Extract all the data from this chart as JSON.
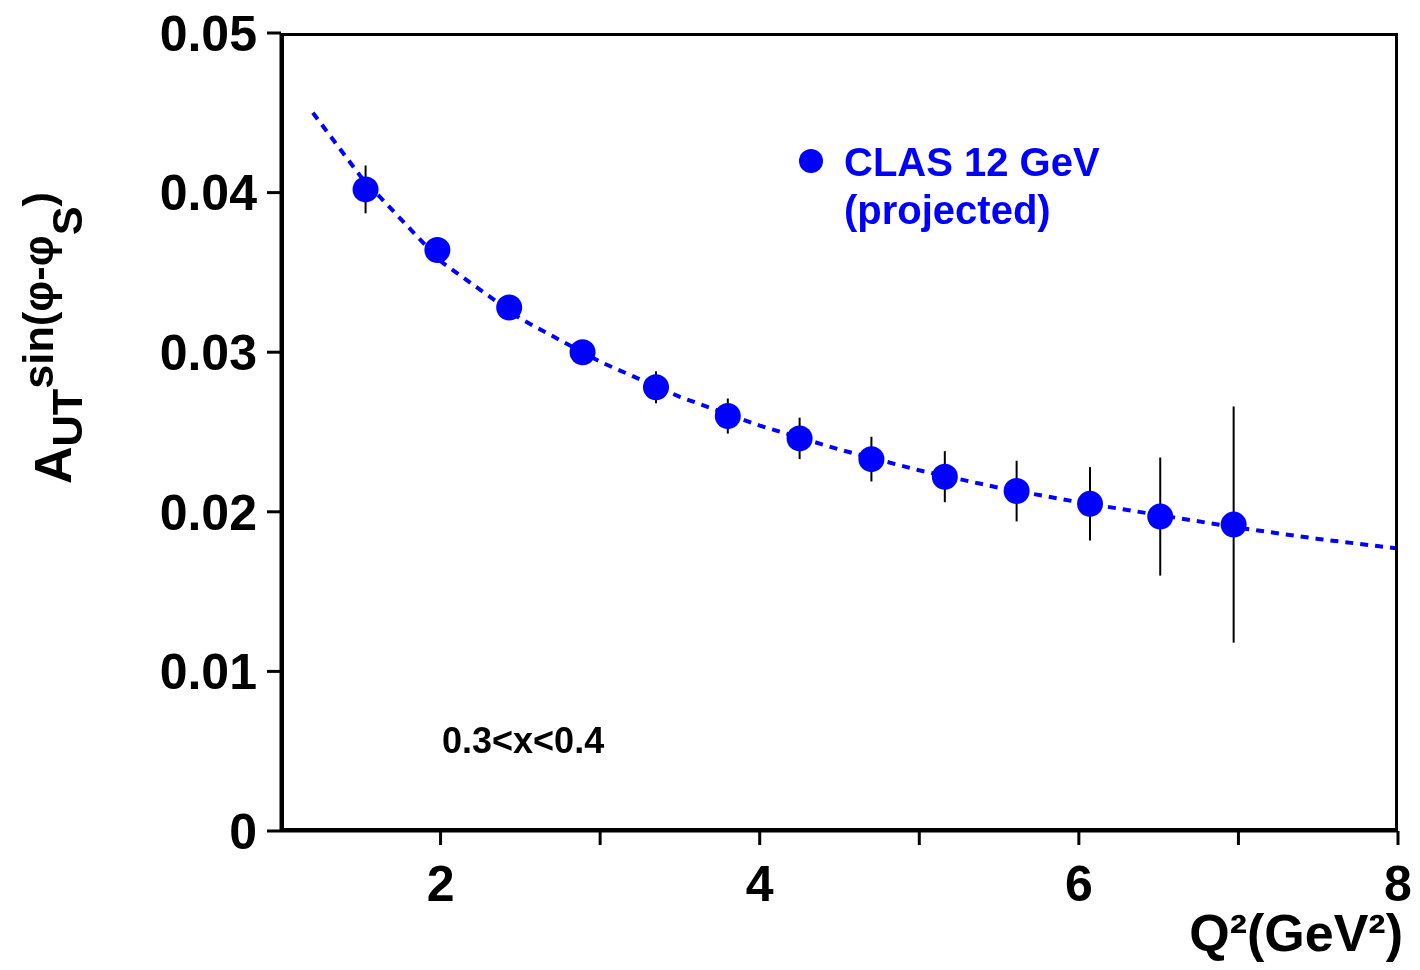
{
  "chart_data": {
    "type": "scatter",
    "xlabel": "Q²(GeV²)",
    "ylabel": "A$_{UT}$$^{sin(φ-φ}$$_{S}$$^{)}$",
    "xlim": [
      1,
      8
    ],
    "xticks": [
      2,
      {
        "value": 3,
        "label": null
      },
      4,
      {
        "value": 5,
        "label": null
      },
      6,
      {
        "value": 7,
        "label": null
      },
      8
    ],
    "ylim": [
      0,
      0.05
    ],
    "yticks": [
      0,
      0.01,
      0.02,
      0.03,
      0.04,
      0.05
    ],
    "x": [
      1.53,
      1.98,
      2.43,
      2.89,
      3.35,
      3.8,
      4.25,
      4.7,
      5.16,
      5.61,
      6.07,
      6.51,
      6.97
    ],
    "series": [
      {
        "name": "CLAS 12 GeV (projected)",
        "marker": "circle",
        "color": "#0000ff",
        "values": [
          0.0402,
          0.0364,
          0.0328,
          0.03,
          0.0278,
          0.026,
          0.0246,
          0.0233,
          0.0222,
          0.0213,
          0.0205,
          0.0197,
          0.0192
        ],
        "errors": [
          0.0015,
          null,
          null,
          null,
          0.001,
          0.0011,
          0.0013,
          0.0014,
          0.0016,
          0.0019,
          0.0023,
          0.0037,
          0.0074
        ]
      },
      {
        "type": "line",
        "marker": "none",
        "color": "#0000ff",
        "line_style": "dashed",
        "x": [
          1.2,
          1.5,
          2,
          2.5,
          3,
          3.5,
          4,
          4.5,
          5,
          5.5,
          6,
          6.5,
          7,
          7.5,
          8
        ],
        "values": [
          0.045,
          0.041,
          0.0357,
          0.0321,
          0.0294,
          0.0272,
          0.0254,
          0.0239,
          0.0226,
          0.0215,
          0.0206,
          0.0198,
          0.019,
          0.0183,
          0.0177
        ]
      }
    ],
    "legend": "top right",
    "annotations": [
      "0.3<x<0.4"
    ]
  }
}
